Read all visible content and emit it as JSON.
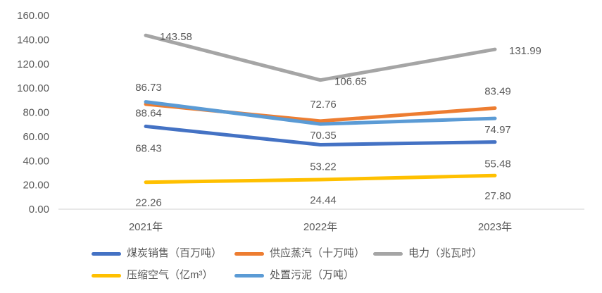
{
  "chart_data": {
    "type": "line",
    "categories": [
      "2021年",
      "2022年",
      "2023年"
    ],
    "series": [
      {
        "name": "煤炭销售（百万吨）",
        "color": "#4472C4",
        "values": [
          68.43,
          53.22,
          55.48
        ],
        "labels": [
          "68.43",
          "53.22",
          "55.48"
        ],
        "label_position": "below"
      },
      {
        "name": "供应蒸汽（十万吨）",
        "color": "#ED7D31",
        "values": [
          86.73,
          72.76,
          83.49
        ],
        "labels": [
          "86.73",
          "72.76",
          "83.49"
        ],
        "label_position": "above"
      },
      {
        "name": "电力（兆瓦时）",
        "color": "#A5A5A5",
        "values": [
          143.58,
          106.65,
          131.99
        ],
        "labels": [
          "143.58",
          "106.65",
          "131.99"
        ],
        "label_position": "right"
      },
      {
        "name": "压缩空气（亿m³）",
        "color": "#FFC000",
        "values": [
          22.26,
          24.44,
          27.8
        ],
        "labels": [
          "22.26",
          "24.44",
          "27.80"
        ],
        "label_position": "below"
      },
      {
        "name": "处置污泥（万吨）",
        "color": "#5B9BD5",
        "values": [
          88.64,
          70.35,
          74.97
        ],
        "labels": [
          "88.64",
          "70.35",
          "74.97"
        ],
        "label_position": "below"
      }
    ],
    "y_axis": {
      "min": 0,
      "max": 160,
      "tick_interval": 20,
      "tick_labels": [
        "0.00",
        "20.00",
        "40.00",
        "60.00",
        "80.00",
        "100.00",
        "120.00",
        "140.00",
        "160.00"
      ]
    },
    "x_axis": {
      "labels": [
        "2021年",
        "2022年",
        "2023年"
      ]
    },
    "legend_position": "bottom",
    "grid": false,
    "colors": {
      "text": "#595959",
      "axis_line": "#D9D9D9",
      "background": "#FFFFFF"
    }
  }
}
